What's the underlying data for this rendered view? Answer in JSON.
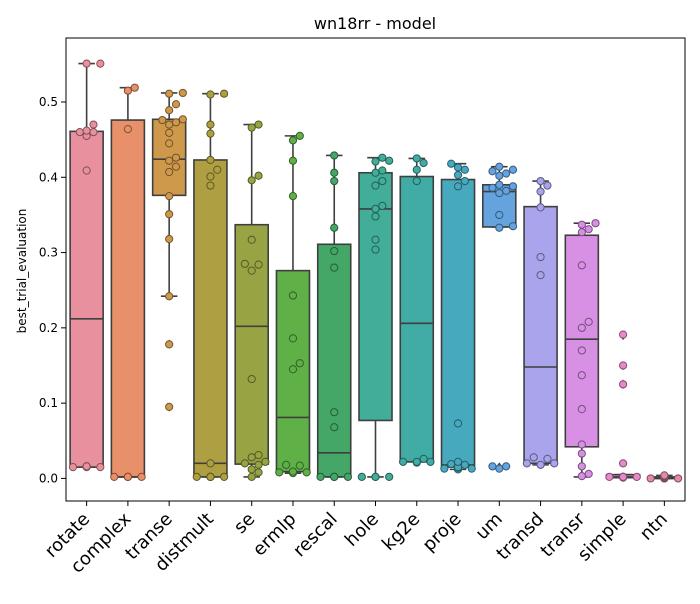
{
  "chart_data": {
    "type": "box",
    "title": "wn18rr - model",
    "xlabel": "",
    "ylabel": "best_trial_evaluation",
    "ylim": [
      -0.03,
      0.585
    ],
    "yticks": [
      0.0,
      0.1,
      0.2,
      0.3,
      0.4,
      0.5
    ],
    "ytick_labels": [
      "0.0",
      "0.1",
      "0.2",
      "0.3",
      "0.4",
      "0.5"
    ],
    "grid": false,
    "legend": "none",
    "categories": [
      "rotate",
      "complex",
      "transe",
      "distmult",
      "se",
      "ermlp",
      "rescal",
      "hole",
      "kg2e",
      "proje",
      "um",
      "transd",
      "transr",
      "simple",
      "ntn"
    ],
    "colors": [
      "#e8909d",
      "#e8906a",
      "#cf994c",
      "#aea042",
      "#98a444",
      "#5eb047",
      "#44a768",
      "#42ad98",
      "#40aca5",
      "#46a9be",
      "#64a3dd",
      "#a9a4ec",
      "#d790e3",
      "#e98ac8",
      "#e48aa8"
    ],
    "boxes": [
      {
        "category": "rotate",
        "q1": 0.015,
        "median": 0.212,
        "q3": 0.461,
        "whisker_low": 0.015,
        "whisker_high": 0.551,
        "outliers": []
      },
      {
        "category": "complex",
        "q1": 0.002,
        "median": 0.002,
        "q3": 0.476,
        "whisker_low": 0.002,
        "whisker_high": 0.519,
        "outliers": []
      },
      {
        "category": "transe",
        "q1": 0.376,
        "median": 0.424,
        "q3": 0.477,
        "whisker_low": 0.242,
        "whisker_high": 0.512,
        "outliers": [
          0.178,
          0.179,
          0.094,
          0.095
        ]
      },
      {
        "category": "distmult",
        "q1": 0.002,
        "median": 0.02,
        "q3": 0.423,
        "whisker_low": 0.002,
        "whisker_high": 0.511,
        "outliers": []
      },
      {
        "category": "se",
        "q1": 0.019,
        "median": 0.202,
        "q3": 0.337,
        "whisker_low": 0.002,
        "whisker_high": 0.47,
        "outliers": []
      },
      {
        "category": "ermlp",
        "q1": 0.009,
        "median": 0.081,
        "q3": 0.276,
        "whisker_low": 0.007,
        "whisker_high": 0.455,
        "outliers": []
      },
      {
        "category": "rescal",
        "q1": 0.002,
        "median": 0.034,
        "q3": 0.311,
        "whisker_low": 0.002,
        "whisker_high": 0.429,
        "outliers": []
      },
      {
        "category": "hole",
        "q1": 0.077,
        "median": 0.358,
        "q3": 0.406,
        "whisker_low": 0.002,
        "whisker_high": 0.426,
        "outliers": []
      },
      {
        "category": "kg2e",
        "q1": 0.022,
        "median": 0.206,
        "q3": 0.401,
        "whisker_low": 0.022,
        "whisker_high": 0.425,
        "outliers": []
      },
      {
        "category": "proje",
        "q1": 0.015,
        "median": 0.018,
        "q3": 0.397,
        "whisker_low": 0.012,
        "whisker_high": 0.418,
        "outliers": []
      },
      {
        "category": "um",
        "q1": 0.334,
        "median": 0.381,
        "q3": 0.39,
        "whisker_low": 0.334,
        "whisker_high": 0.414,
        "outliers": [
          0.016,
          0.013
        ]
      },
      {
        "category": "transd",
        "q1": 0.02,
        "median": 0.148,
        "q3": 0.361,
        "whisker_low": 0.018,
        "whisker_high": 0.395,
        "outliers": []
      },
      {
        "category": "transr",
        "q1": 0.042,
        "median": 0.185,
        "q3": 0.323,
        "whisker_low": 0.002,
        "whisker_high": 0.339,
        "outliers": []
      },
      {
        "category": "simple",
        "q1": 0.001,
        "median": 0.002,
        "q3": 0.005,
        "whisker_low": 0.001,
        "whisker_high": 0.005,
        "outliers": [
          0.189,
          0.191,
          0.149,
          0.124,
          0.126,
          0.02
        ]
      },
      {
        "category": "ntn",
        "q1": 0.0,
        "median": 0.0,
        "q3": 0.002,
        "whisker_low": 0.0,
        "whisker_high": 0.004,
        "outliers": []
      }
    ],
    "points": {
      "rotate": [
        0.551,
        0.551,
        0.47,
        0.462,
        0.46,
        0.46,
        0.455,
        0.409,
        0.016,
        0.016,
        0.015,
        0.015,
        0.015,
        0.016
      ],
      "complex": [
        0.519,
        0.515,
        0.464,
        0.002,
        0.002,
        0.002,
        0.002,
        0.002
      ],
      "transe": [
        0.512,
        0.511,
        0.497,
        0.489,
        0.476,
        0.477,
        0.473,
        0.47,
        0.459,
        0.445,
        0.426,
        0.422,
        0.414,
        0.407,
        0.375,
        0.351,
        0.318,
        0.242,
        0.178,
        0.095
      ],
      "distmult": [
        0.511,
        0.51,
        0.47,
        0.458,
        0.423,
        0.41,
        0.401,
        0.389,
        0.02,
        0.002,
        0.002,
        0.002,
        0.002,
        0.002,
        0.002
      ],
      "se": [
        0.47,
        0.466,
        0.402,
        0.396,
        0.317,
        0.285,
        0.284,
        0.276,
        0.132,
        0.031,
        0.028,
        0.022,
        0.02,
        0.018,
        0.012,
        0.008,
        0.002
      ],
      "ermlp": [
        0.455,
        0.449,
        0.422,
        0.375,
        0.243,
        0.186,
        0.153,
        0.145,
        0.018,
        0.017,
        0.009,
        0.008,
        0.007,
        0.008
      ],
      "rescal": [
        0.429,
        0.406,
        0.395,
        0.333,
        0.302,
        0.28,
        0.088,
        0.068,
        0.002,
        0.002,
        0.002,
        0.002,
        0.002
      ],
      "hole": [
        0.426,
        0.422,
        0.421,
        0.409,
        0.406,
        0.395,
        0.389,
        0.362,
        0.358,
        0.348,
        0.317,
        0.304,
        0.002,
        0.002,
        0.002,
        0.002
      ],
      "kg2e": [
        0.425,
        0.419,
        0.41,
        0.395,
        0.026,
        0.022,
        0.022,
        0.021,
        0.022
      ],
      "proje": [
        0.418,
        0.413,
        0.41,
        0.403,
        0.395,
        0.388,
        0.073,
        0.022,
        0.018,
        0.015,
        0.013,
        0.012,
        0.013,
        0.014,
        0.015,
        0.019
      ],
      "um": [
        0.414,
        0.41,
        0.408,
        0.405,
        0.402,
        0.39,
        0.388,
        0.386,
        0.382,
        0.379,
        0.35,
        0.335,
        0.333,
        0.016,
        0.016,
        0.013
      ],
      "transd": [
        0.395,
        0.389,
        0.381,
        0.36,
        0.294,
        0.27,
        0.028,
        0.026,
        0.02,
        0.018,
        0.02
      ],
      "transr": [
        0.339,
        0.337,
        0.331,
        0.327,
        0.283,
        0.208,
        0.2,
        0.17,
        0.137,
        0.092,
        0.045,
        0.033,
        0.016,
        0.006,
        0.003
      ],
      "simple": [
        0.191,
        0.15,
        0.125,
        0.02,
        0.002,
        0.002,
        0.002,
        0.002,
        0.002,
        0.002,
        0.001
      ],
      "ntn": [
        0.004,
        0.003,
        0.001,
        0.0,
        0.0,
        0.0,
        0.0,
        0.001,
        0.002,
        0.003
      ]
    }
  }
}
